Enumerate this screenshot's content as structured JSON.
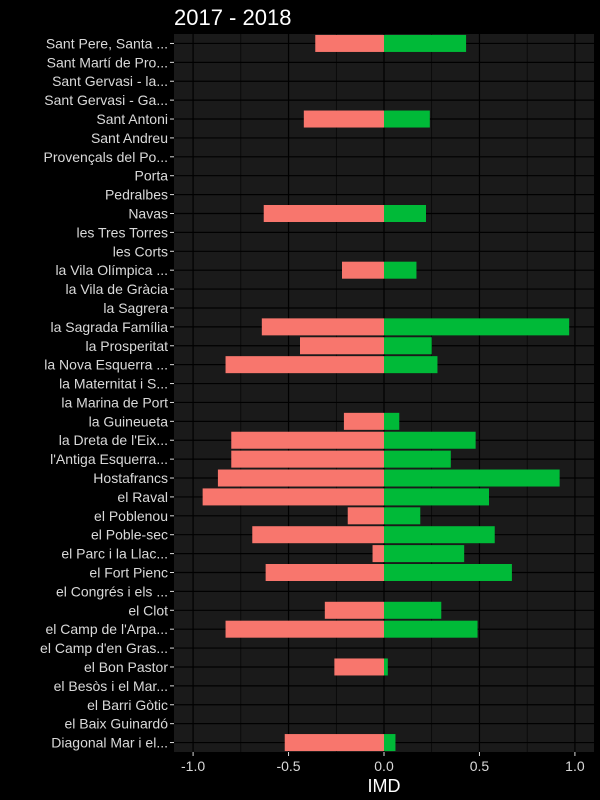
{
  "chart_data": {
    "type": "bar",
    "orientation": "horizontal",
    "stacked": "diverging",
    "title": "2017 - 2018",
    "xlabel": "IMD",
    "ylabel": "",
    "xlim": [
      -1.1,
      1.1
    ],
    "xticks": [
      -1.0,
      -0.5,
      0.0,
      0.5,
      1.0
    ],
    "xtick_labels": [
      "-1.0",
      "-0.5",
      "0.0",
      "0.5",
      "1.0"
    ],
    "grid": true,
    "legend": "none",
    "colors": {
      "negative": "#f8766d",
      "positive": "#00ba38",
      "background": "#1a1a1a",
      "grid": "#000000"
    },
    "categories": [
      "Sant Pere, Santa ...",
      "Sant Martí de Pro...",
      "Sant Gervasi - la...",
      "Sant Gervasi - Ga...",
      "Sant Antoni",
      "Sant Andreu",
      "Provençals del Po...",
      "Porta",
      "Pedralbes",
      "Navas",
      "les Tres Torres",
      "les Corts",
      "la Vila Olímpica ...",
      "la Vila de Gràcia",
      "la Sagrera",
      "la Sagrada Família",
      "la Prosperitat",
      "la Nova Esquerra ...",
      "la Maternitat i S...",
      "la Marina de Port",
      "la Guineueta",
      "la Dreta de l'Eix...",
      "l'Antiga Esquerra...",
      "Hostafrancs",
      "el Raval",
      "el Poblenou",
      "el Poble-sec",
      "el Parc i la Llac...",
      "el Fort Pienc",
      "el Congrés i els ...",
      "el Clot",
      "el Camp de l'Arpa...",
      "el Camp d'en Gras...",
      "el Bon Pastor",
      "el Besòs i el Mar...",
      "el Barri Gòtic",
      "el Baix Guinardó",
      "Diagonal Mar i el..."
    ],
    "series": [
      {
        "name": "",
        "values": [
          -0.36,
          0,
          0,
          0,
          -0.42,
          0,
          0,
          0,
          0,
          -0.63,
          0,
          0,
          -0.22,
          0,
          0,
          -0.64,
          -0.44,
          -0.83,
          0,
          0,
          -0.21,
          -0.8,
          -0.8,
          -0.87,
          -0.95,
          -0.19,
          -0.69,
          -0.06,
          -0.62,
          0,
          -0.31,
          -0.83,
          0,
          -0.26,
          0,
          0,
          0,
          -0.52
        ]
      },
      {
        "name": "",
        "values": [
          0.43,
          0,
          0,
          0,
          0.24,
          0,
          0,
          0,
          0,
          0.22,
          0,
          0,
          0.17,
          0,
          0,
          0.97,
          0.25,
          0.28,
          0,
          0,
          0.08,
          0.48,
          0.35,
          0.92,
          0.55,
          0.19,
          0.58,
          0.42,
          0.67,
          0,
          0.3,
          0.49,
          0,
          0.02,
          0,
          0,
          0,
          0.06
        ]
      }
    ]
  }
}
